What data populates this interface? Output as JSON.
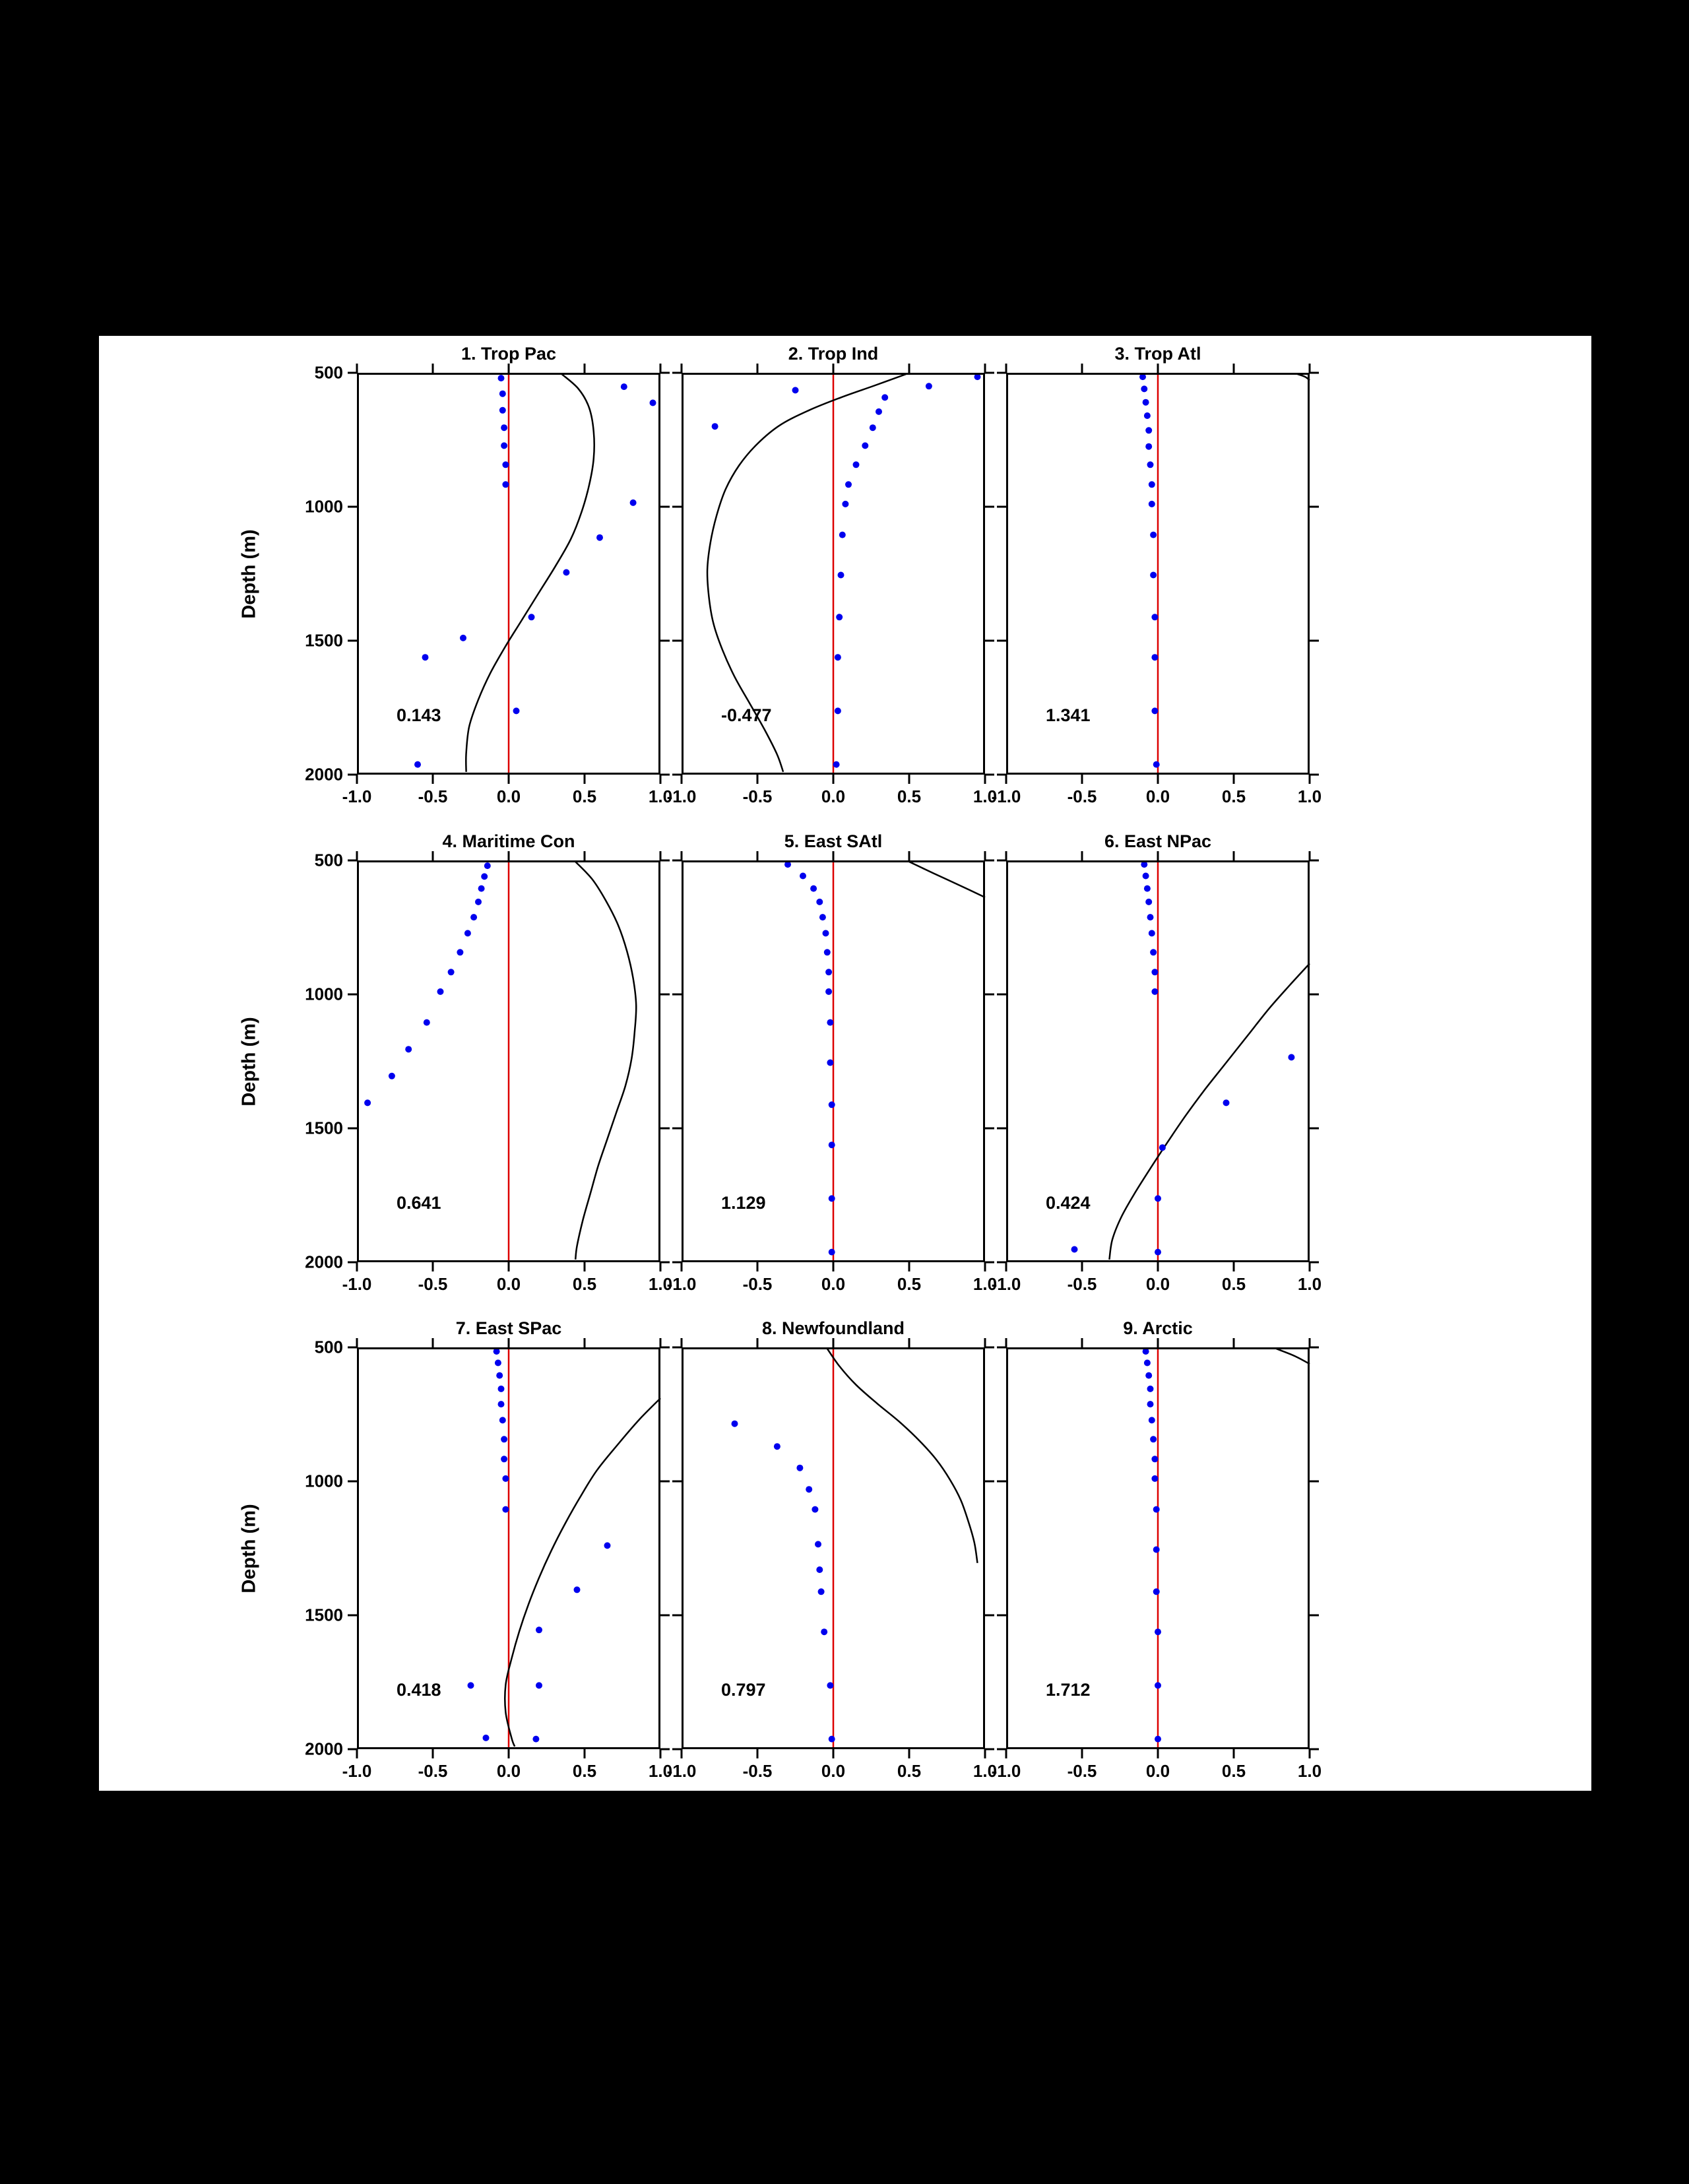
{
  "figure": {
    "ylabel": "Depth (m)",
    "x_ticks": [
      "-1.0",
      "-0.5",
      "0.0",
      "0.5",
      "1.0"
    ],
    "x_tick_values": [
      -1.0,
      -0.5,
      0.0,
      0.5,
      1.0
    ],
    "y_ticks": [
      "500",
      "1000",
      "1500",
      "2000"
    ],
    "y_tick_values": [
      500,
      1000,
      1500,
      2000
    ],
    "colors": {
      "curve": "#000000",
      "dots": "#0000ee",
      "zero_line": "#dd0000",
      "frame": "#000000",
      "figure_bg": "#ffffff",
      "page_bg": "#000000"
    }
  },
  "chart_data": {
    "type": "line+scatter",
    "description": "3x3 grid of vertical depth-profile plots; black curve and blue dots vs depth, red zero reference line, correlation-style value annotated bottom-left of each panel",
    "xlim": [
      -1.0,
      1.0
    ],
    "depth_range": [
      500,
      2000
    ],
    "ylabel": "Depth (m)",
    "panels": [
      {
        "title": "1. Trop Pac",
        "annotation": "0.143",
        "curve": [
          [
            0.35,
            505
          ],
          [
            0.46,
            560
          ],
          [
            0.53,
            630
          ],
          [
            0.56,
            720
          ],
          [
            0.56,
            820
          ],
          [
            0.53,
            920
          ],
          [
            0.48,
            1020
          ],
          [
            0.41,
            1120
          ],
          [
            0.31,
            1220
          ],
          [
            0.2,
            1320
          ],
          [
            0.09,
            1420
          ],
          [
            -0.02,
            1520
          ],
          [
            -0.12,
            1620
          ],
          [
            -0.2,
            1720
          ],
          [
            -0.26,
            1820
          ],
          [
            -0.28,
            1920
          ],
          [
            -0.28,
            1990
          ]
        ],
        "dots": [
          [
            -0.05,
            520
          ],
          [
            0.76,
            552
          ],
          [
            -0.04,
            578
          ],
          [
            0.95,
            612
          ],
          [
            -0.04,
            640
          ],
          [
            -0.03,
            705
          ],
          [
            -0.03,
            772
          ],
          [
            -0.02,
            843
          ],
          [
            -0.02,
            917
          ],
          [
            0.82,
            985
          ],
          [
            0.6,
            1115
          ],
          [
            0.38,
            1245
          ],
          [
            0.15,
            1412
          ],
          [
            -0.3,
            1490
          ],
          [
            -0.55,
            1562
          ],
          [
            0.05,
            1762
          ],
          [
            -0.6,
            1962
          ]
        ]
      },
      {
        "title": "2. Trop Ind",
        "annotation": "-0.477",
        "curve": [
          [
            0.48,
            505
          ],
          [
            0.27,
            548
          ],
          [
            0.05,
            592
          ],
          [
            -0.16,
            640
          ],
          [
            -0.35,
            695
          ],
          [
            -0.5,
            765
          ],
          [
            -0.62,
            845
          ],
          [
            -0.71,
            935
          ],
          [
            -0.77,
            1035
          ],
          [
            -0.81,
            1135
          ],
          [
            -0.83,
            1235
          ],
          [
            -0.82,
            1335
          ],
          [
            -0.79,
            1435
          ],
          [
            -0.73,
            1535
          ],
          [
            -0.65,
            1635
          ],
          [
            -0.55,
            1735
          ],
          [
            -0.45,
            1835
          ],
          [
            -0.37,
            1925
          ],
          [
            -0.33,
            1990
          ]
        ],
        "dots": [
          [
            0.95,
            515
          ],
          [
            0.63,
            550
          ],
          [
            -0.25,
            565
          ],
          [
            0.34,
            592
          ],
          [
            0.3,
            645
          ],
          [
            -0.78,
            700
          ],
          [
            0.26,
            705
          ],
          [
            0.21,
            772
          ],
          [
            0.15,
            843
          ],
          [
            0.1,
            917
          ],
          [
            0.08,
            990
          ],
          [
            0.06,
            1105
          ],
          [
            0.05,
            1255
          ],
          [
            0.04,
            1412
          ],
          [
            0.03,
            1562
          ],
          [
            0.03,
            1762
          ],
          [
            0.02,
            1962
          ]
        ]
      },
      {
        "title": "3. Trop Atl",
        "annotation": "1.341",
        "curve": [
          [
            0.92,
            505
          ],
          [
            0.97,
            515
          ],
          [
            1.0,
            528
          ]
        ],
        "dots": [
          [
            -0.1,
            515
          ],
          [
            -0.09,
            560
          ],
          [
            -0.08,
            610
          ],
          [
            -0.07,
            660
          ],
          [
            -0.06,
            715
          ],
          [
            -0.06,
            775
          ],
          [
            -0.05,
            843
          ],
          [
            -0.04,
            917
          ],
          [
            -0.04,
            990
          ],
          [
            -0.03,
            1105
          ],
          [
            -0.03,
            1255
          ],
          [
            -0.02,
            1412
          ],
          [
            -0.02,
            1562
          ],
          [
            -0.02,
            1762
          ],
          [
            -0.01,
            1962
          ]
        ]
      },
      {
        "title": "4. Maritime Con",
        "annotation": "0.641",
        "curve": [
          [
            0.44,
            505
          ],
          [
            0.55,
            570
          ],
          [
            0.64,
            650
          ],
          [
            0.72,
            740
          ],
          [
            0.78,
            840
          ],
          [
            0.82,
            940
          ],
          [
            0.84,
            1040
          ],
          [
            0.83,
            1140
          ],
          [
            0.81,
            1240
          ],
          [
            0.77,
            1340
          ],
          [
            0.71,
            1440
          ],
          [
            0.65,
            1540
          ],
          [
            0.59,
            1640
          ],
          [
            0.54,
            1740
          ],
          [
            0.49,
            1840
          ],
          [
            0.45,
            1940
          ],
          [
            0.44,
            1990
          ]
        ],
        "dots": [
          [
            -0.14,
            520
          ],
          [
            -0.16,
            560
          ],
          [
            -0.18,
            605
          ],
          [
            -0.2,
            655
          ],
          [
            -0.23,
            712
          ],
          [
            -0.27,
            772
          ],
          [
            -0.32,
            843
          ],
          [
            -0.38,
            917
          ],
          [
            -0.45,
            990
          ],
          [
            -0.54,
            1105
          ],
          [
            -0.66,
            1205
          ],
          [
            -0.77,
            1305
          ],
          [
            -0.93,
            1405
          ]
        ]
      },
      {
        "title": "5. East SAtl",
        "annotation": "1.129",
        "curve": [
          [
            0.5,
            505
          ],
          [
            0.66,
            548
          ],
          [
            0.84,
            595
          ],
          [
            1.0,
            638
          ]
        ],
        "dots": [
          [
            -0.3,
            515
          ],
          [
            -0.2,
            558
          ],
          [
            -0.13,
            605
          ],
          [
            -0.09,
            655
          ],
          [
            -0.07,
            712
          ],
          [
            -0.05,
            772
          ],
          [
            -0.04,
            843
          ],
          [
            -0.03,
            917
          ],
          [
            -0.03,
            990
          ],
          [
            -0.02,
            1105
          ],
          [
            -0.02,
            1255
          ],
          [
            -0.01,
            1412
          ],
          [
            -0.01,
            1562
          ],
          [
            -0.01,
            1762
          ],
          [
            -0.01,
            1962
          ]
        ]
      },
      {
        "title": "6. East NPac",
        "annotation": "0.424",
        "curve": [
          [
            1.0,
            885
          ],
          [
            0.87,
            965
          ],
          [
            0.73,
            1055
          ],
          [
            0.59,
            1155
          ],
          [
            0.45,
            1255
          ],
          [
            0.31,
            1355
          ],
          [
            0.18,
            1455
          ],
          [
            0.06,
            1555
          ],
          [
            -0.05,
            1650
          ],
          [
            -0.15,
            1740
          ],
          [
            -0.24,
            1830
          ],
          [
            -0.3,
            1915
          ],
          [
            -0.32,
            1990
          ]
        ],
        "dots": [
          [
            -0.09,
            515
          ],
          [
            -0.08,
            558
          ],
          [
            -0.07,
            605
          ],
          [
            -0.06,
            655
          ],
          [
            -0.05,
            712
          ],
          [
            -0.04,
            772
          ],
          [
            -0.03,
            843
          ],
          [
            -0.02,
            917
          ],
          [
            -0.02,
            990
          ],
          [
            0.88,
            1235
          ],
          [
            0.45,
            1405
          ],
          [
            0.03,
            1572
          ],
          [
            0.0,
            1762
          ],
          [
            -0.55,
            1952
          ],
          [
            0.0,
            1962
          ]
        ]
      },
      {
        "title": "7. East SPac",
        "annotation": "0.418",
        "curve": [
          [
            1.0,
            690
          ],
          [
            0.86,
            770
          ],
          [
            0.72,
            862
          ],
          [
            0.58,
            960
          ],
          [
            0.47,
            1060
          ],
          [
            0.37,
            1160
          ],
          [
            0.28,
            1260
          ],
          [
            0.2,
            1360
          ],
          [
            0.13,
            1460
          ],
          [
            0.07,
            1560
          ],
          [
            0.02,
            1660
          ],
          [
            -0.02,
            1760
          ],
          [
            -0.02,
            1862
          ],
          [
            0.02,
            1960
          ],
          [
            0.04,
            1990
          ]
        ],
        "dots": [
          [
            -0.08,
            515
          ],
          [
            -0.07,
            558
          ],
          [
            -0.06,
            605
          ],
          [
            -0.05,
            655
          ],
          [
            -0.05,
            712
          ],
          [
            -0.04,
            772
          ],
          [
            -0.03,
            843
          ],
          [
            -0.03,
            917
          ],
          [
            -0.02,
            990
          ],
          [
            -0.02,
            1105
          ],
          [
            0.65,
            1240
          ],
          [
            0.45,
            1405
          ],
          [
            0.2,
            1555
          ],
          [
            -0.25,
            1762
          ],
          [
            0.2,
            1762
          ],
          [
            -0.15,
            1958
          ],
          [
            0.18,
            1962
          ]
        ]
      },
      {
        "title": "8. Newfoundland",
        "annotation": "0.797",
        "curve": [
          [
            -0.04,
            505
          ],
          [
            0.04,
            570
          ],
          [
            0.15,
            640
          ],
          [
            0.29,
            710
          ],
          [
            0.44,
            780
          ],
          [
            0.57,
            850
          ],
          [
            0.68,
            920
          ],
          [
            0.77,
            995
          ],
          [
            0.84,
            1070
          ],
          [
            0.89,
            1150
          ],
          [
            0.93,
            1230
          ],
          [
            0.95,
            1305
          ]
        ],
        "dots": [
          [
            -0.65,
            785
          ],
          [
            -0.37,
            870
          ],
          [
            -0.22,
            950
          ],
          [
            -0.16,
            1030
          ],
          [
            -0.12,
            1105
          ],
          [
            -0.1,
            1235
          ],
          [
            -0.09,
            1330
          ],
          [
            -0.08,
            1412
          ],
          [
            -0.06,
            1562
          ],
          [
            -0.02,
            1762
          ],
          [
            -0.01,
            1962
          ]
        ]
      },
      {
        "title": "9. Arctic",
        "annotation": "1.712",
        "curve": [
          [
            0.78,
            505
          ],
          [
            0.9,
            532
          ],
          [
            1.0,
            562
          ]
        ],
        "dots": [
          [
            -0.08,
            515
          ],
          [
            -0.07,
            558
          ],
          [
            -0.06,
            605
          ],
          [
            -0.05,
            655
          ],
          [
            -0.05,
            712
          ],
          [
            -0.04,
            772
          ],
          [
            -0.03,
            843
          ],
          [
            -0.02,
            917
          ],
          [
            -0.02,
            990
          ],
          [
            -0.01,
            1105
          ],
          [
            -0.01,
            1255
          ],
          [
            -0.01,
            1412
          ],
          [
            0.0,
            1562
          ],
          [
            0.0,
            1762
          ],
          [
            0.0,
            1962
          ]
        ]
      }
    ]
  }
}
